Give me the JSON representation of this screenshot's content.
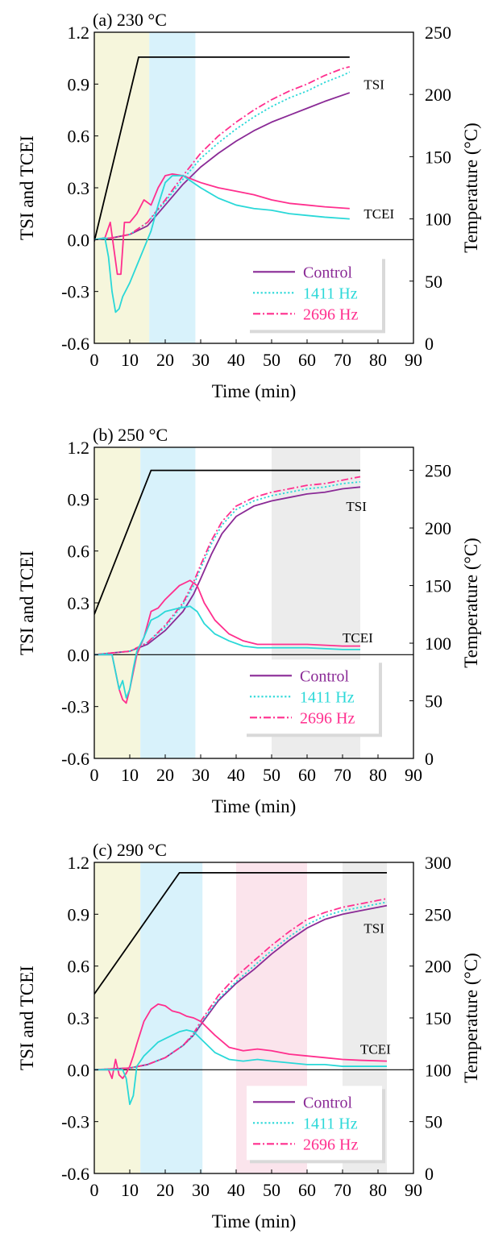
{
  "chart_data": [
    {
      "type": "line",
      "panel_label": "(a) 230 °C",
      "xlabel": "Time (min)",
      "ylabel": "TSI and TCEI",
      "y2label": "Temperature (°C)",
      "xlim": [
        0,
        90
      ],
      "ylim": [
        -0.6,
        1.2
      ],
      "y2lim": [
        0,
        250
      ],
      "xticks": [
        "0",
        "10",
        "20",
        "30",
        "40",
        "50",
        "60",
        "70",
        "80",
        "90"
      ],
      "yticks": [
        "-0.6",
        "-0.3",
        "0.0",
        "0.3",
        "0.6",
        "0.9",
        "1.2"
      ],
      "y2ticks": [
        "0",
        "50",
        "100",
        "150",
        "200",
        "250"
      ],
      "grid": false,
      "legend_position": "bottom-right",
      "shaded_regions": [
        {
          "x": [
            0,
            15.5
          ],
          "color": "#f6f6dc"
        },
        {
          "x": [
            15.5,
            28.5
          ],
          "color": "#d8f2fb"
        }
      ],
      "annotations": [
        {
          "text": "TSI",
          "x": 76,
          "y": 0.9
        },
        {
          "text": "TCEI",
          "x": 76,
          "y": 0.15
        }
      ],
      "temperature": {
        "x": [
          0,
          12.5,
          72
        ],
        "y": [
          82,
          230,
          230
        ]
      },
      "series": [
        {
          "name": "Control",
          "group": "TSI",
          "color": "#8a2a96",
          "style": "solid",
          "x": [
            0,
            5,
            10,
            15,
            20,
            25,
            30,
            35,
            40,
            45,
            50,
            55,
            60,
            65,
            72
          ],
          "y": [
            0,
            0.01,
            0.03,
            0.08,
            0.2,
            0.32,
            0.42,
            0.5,
            0.57,
            0.63,
            0.68,
            0.72,
            0.76,
            0.8,
            0.85
          ]
        },
        {
          "name": "1411 Hz",
          "group": "TSI",
          "color": "#2ad8d8",
          "style": "dotted",
          "x": [
            0,
            5,
            10,
            15,
            20,
            25,
            30,
            35,
            40,
            45,
            50,
            55,
            60,
            65,
            70,
            72
          ],
          "y": [
            0,
            0.01,
            0.03,
            0.1,
            0.22,
            0.35,
            0.47,
            0.56,
            0.64,
            0.71,
            0.77,
            0.82,
            0.86,
            0.91,
            0.95,
            0.97
          ]
        },
        {
          "name": "2696 Hz",
          "group": "TSI",
          "color": "#ff2f8e",
          "style": "dashdot",
          "x": [
            0,
            5,
            10,
            15,
            20,
            25,
            30,
            35,
            40,
            45,
            50,
            55,
            60,
            65,
            70,
            72
          ],
          "y": [
            0,
            0.01,
            0.03,
            0.1,
            0.23,
            0.37,
            0.5,
            0.6,
            0.68,
            0.75,
            0.81,
            0.86,
            0.9,
            0.95,
            0.99,
            1.0
          ]
        },
        {
          "name": "Control",
          "group": "TCEI",
          "color": "#ff2f8e",
          "style": "solid",
          "x": [
            0,
            3,
            4.5,
            5.5,
            6.5,
            7.5,
            8.5,
            10,
            12,
            14,
            16,
            18,
            20,
            22,
            25,
            30,
            35,
            40,
            45,
            50,
            55,
            60,
            65,
            72
          ],
          "y": [
            0,
            0.01,
            0.1,
            -0.05,
            -0.2,
            -0.2,
            0.1,
            0.1,
            0.15,
            0.23,
            0.2,
            0.3,
            0.37,
            0.38,
            0.37,
            0.33,
            0.3,
            0.28,
            0.26,
            0.23,
            0.21,
            0.2,
            0.19,
            0.18
          ]
        },
        {
          "name": "1411 Hz",
          "group": "TCEI",
          "color": "#2ad8d8",
          "style": "solid",
          "x": [
            0,
            3,
            4,
            5,
            6,
            7,
            8,
            10,
            12,
            14,
            16,
            18,
            20,
            22,
            25,
            30,
            35,
            40,
            45,
            50,
            55,
            60,
            65,
            72
          ],
          "y": [
            0,
            0.01,
            -0.1,
            -0.3,
            -0.42,
            -0.4,
            -0.33,
            -0.25,
            -0.15,
            -0.05,
            0.05,
            0.2,
            0.33,
            0.37,
            0.37,
            0.3,
            0.24,
            0.2,
            0.18,
            0.17,
            0.15,
            0.14,
            0.13,
            0.12
          ]
        }
      ],
      "legend": [
        {
          "label": "Control",
          "color": "#8a2a96",
          "style": "solid"
        },
        {
          "label": "1411 Hz",
          "color": "#2ad8d8",
          "style": "dotted"
        },
        {
          "label": "2696 Hz",
          "color": "#ff2f8e",
          "style": "dashdot"
        }
      ]
    },
    {
      "type": "line",
      "panel_label": "(b) 250 °C",
      "xlabel": "Time (min)",
      "ylabel": "TSI and TCEI",
      "y2label": "Temperature (°C)",
      "xlim": [
        0,
        90
      ],
      "ylim": [
        -0.6,
        1.2
      ],
      "y2lim": [
        0,
        270
      ],
      "xticks": [
        "0",
        "10",
        "20",
        "30",
        "40",
        "50",
        "60",
        "70",
        "80",
        "90"
      ],
      "yticks": [
        "-0.6",
        "-0.3",
        "0.0",
        "0.3",
        "0.6",
        "0.9",
        "1.2"
      ],
      "y2ticks": [
        "0",
        "50",
        "100",
        "150",
        "200",
        "250"
      ],
      "grid": false,
      "legend_position": "bottom-right",
      "shaded_regions": [
        {
          "x": [
            0,
            13
          ],
          "color": "#f6f6dc"
        },
        {
          "x": [
            13,
            28.5
          ],
          "color": "#d8f2fb"
        },
        {
          "x": [
            50,
            75
          ],
          "color": "#ececec"
        }
      ],
      "annotations": [
        {
          "text": "TSI",
          "x": 71,
          "y": 0.86
        },
        {
          "text": "TCEI",
          "x": 70,
          "y": 0.1
        }
      ],
      "temperature": {
        "x": [
          0,
          16,
          75
        ],
        "y": [
          125,
          250,
          250
        ]
      },
      "series": [
        {
          "name": "Control",
          "group": "TSI",
          "color": "#8a2a96",
          "style": "solid",
          "x": [
            0,
            5,
            10,
            15,
            20,
            25,
            28,
            30,
            33,
            36,
            40,
            45,
            50,
            55,
            60,
            65,
            70,
            75
          ],
          "y": [
            0,
            0.01,
            0.02,
            0.06,
            0.14,
            0.25,
            0.35,
            0.44,
            0.58,
            0.7,
            0.8,
            0.86,
            0.89,
            0.91,
            0.93,
            0.94,
            0.96,
            0.97
          ]
        },
        {
          "name": "1411 Hz",
          "group": "TSI",
          "color": "#2ad8d8",
          "style": "dotted",
          "x": [
            0,
            5,
            10,
            15,
            20,
            25,
            28,
            30,
            33,
            36,
            40,
            45,
            50,
            55,
            60,
            65,
            70,
            75
          ],
          "y": [
            0,
            0.01,
            0.02,
            0.07,
            0.16,
            0.29,
            0.4,
            0.5,
            0.64,
            0.75,
            0.84,
            0.89,
            0.92,
            0.94,
            0.96,
            0.97,
            0.99,
            1.0
          ]
        },
        {
          "name": "2696 Hz",
          "group": "TSI",
          "color": "#ff2f8e",
          "style": "dashdot",
          "x": [
            0,
            5,
            10,
            15,
            20,
            25,
            28,
            30,
            33,
            36,
            40,
            45,
            50,
            55,
            60,
            65,
            70,
            75
          ],
          "y": [
            0,
            0.01,
            0.02,
            0.07,
            0.17,
            0.3,
            0.42,
            0.52,
            0.66,
            0.77,
            0.86,
            0.91,
            0.94,
            0.96,
            0.98,
            0.99,
            1.01,
            1.03
          ]
        },
        {
          "name": "Control",
          "group": "TCEI",
          "color": "#ff2f8e",
          "style": "solid",
          "x": [
            0,
            5,
            7,
            8,
            9,
            10,
            11,
            12,
            14,
            16,
            18,
            20,
            24,
            27,
            29,
            31,
            34,
            38,
            42,
            46,
            50,
            60,
            70,
            75
          ],
          "y": [
            0,
            0,
            -0.2,
            -0.26,
            -0.28,
            -0.2,
            -0.1,
            0.0,
            0.1,
            0.25,
            0.27,
            0.32,
            0.4,
            0.43,
            0.4,
            0.3,
            0.2,
            0.12,
            0.08,
            0.06,
            0.06,
            0.06,
            0.05,
            0.05
          ]
        },
        {
          "name": "1411 Hz",
          "group": "TCEI",
          "color": "#2ad8d8",
          "style": "solid",
          "x": [
            0,
            5,
            7,
            8,
            9,
            10,
            11,
            12,
            14,
            16,
            18,
            20,
            24,
            27,
            29,
            31,
            34,
            38,
            42,
            46,
            50,
            60,
            70,
            75
          ],
          "y": [
            0,
            0,
            -0.2,
            -0.15,
            -0.25,
            -0.2,
            -0.08,
            0.02,
            0.1,
            0.2,
            0.22,
            0.25,
            0.27,
            0.28,
            0.25,
            0.18,
            0.12,
            0.08,
            0.05,
            0.04,
            0.04,
            0.04,
            0.03,
            0.03
          ]
        }
      ],
      "legend": [
        {
          "label": "Control",
          "color": "#8a2a96",
          "style": "solid"
        },
        {
          "label": "1411 Hz",
          "color": "#2ad8d8",
          "style": "dotted"
        },
        {
          "label": "2696 Hz",
          "color": "#ff2f8e",
          "style": "dashdot"
        }
      ]
    },
    {
      "type": "line",
      "panel_label": "(c) 290 °C",
      "xlabel": "Time (min)",
      "ylabel": "TSI and TCEI",
      "y2label": "Temperature (°C)",
      "xlim": [
        0,
        90
      ],
      "ylim": [
        -0.6,
        1.2
      ],
      "y2lim": [
        0,
        300
      ],
      "xticks": [
        "0",
        "10",
        "20",
        "30",
        "40",
        "50",
        "60",
        "70",
        "80",
        "90"
      ],
      "yticks": [
        "-0.6",
        "-0.3",
        "0.0",
        "0.3",
        "0.6",
        "0.9",
        "1.2"
      ],
      "y2ticks": [
        "0",
        "50",
        "100",
        "150",
        "200",
        "250",
        "300"
      ],
      "grid": false,
      "legend_position": "bottom-right",
      "shaded_regions": [
        {
          "x": [
            0,
            13
          ],
          "color": "#f6f6dc"
        },
        {
          "x": [
            13,
            30.5
          ],
          "color": "#d8f2fb"
        },
        {
          "x": [
            40,
            60
          ],
          "color": "#fbe4ec"
        },
        {
          "x": [
            70,
            82.5
          ],
          "color": "#ececec"
        }
      ],
      "annotations": [
        {
          "text": "TSI",
          "x": 76,
          "y": 0.82
        },
        {
          "text": "TCEI",
          "x": 75,
          "y": 0.12
        }
      ],
      "temperature": {
        "x": [
          0,
          24,
          82.5
        ],
        "y": [
          173,
          290,
          290
        ]
      },
      "series": [
        {
          "name": "Control",
          "group": "TSI",
          "color": "#8a2a96",
          "style": "solid",
          "x": [
            0,
            10,
            15,
            20,
            25,
            28,
            30,
            35,
            40,
            45,
            50,
            55,
            60,
            65,
            70,
            75,
            80,
            82.5
          ],
          "y": [
            0,
            0.01,
            0.03,
            0.07,
            0.14,
            0.2,
            0.26,
            0.4,
            0.5,
            0.58,
            0.67,
            0.75,
            0.82,
            0.87,
            0.9,
            0.92,
            0.94,
            0.95
          ]
        },
        {
          "name": "1411 Hz",
          "group": "TSI",
          "color": "#2ad8d8",
          "style": "dotted",
          "x": [
            0,
            10,
            15,
            20,
            25,
            28,
            30,
            35,
            40,
            45,
            50,
            55,
            60,
            65,
            70,
            75,
            80,
            82.5
          ],
          "y": [
            0,
            0.01,
            0.03,
            0.07,
            0.14,
            0.2,
            0.27,
            0.41,
            0.51,
            0.6,
            0.69,
            0.77,
            0.84,
            0.89,
            0.92,
            0.94,
            0.96,
            0.97
          ]
        },
        {
          "name": "2696 Hz",
          "group": "TSI",
          "color": "#ff2f8e",
          "style": "dashdot",
          "x": [
            0,
            10,
            15,
            20,
            25,
            28,
            30,
            35,
            40,
            45,
            50,
            55,
            60,
            65,
            70,
            75,
            80,
            82.5
          ],
          "y": [
            0,
            0.01,
            0.03,
            0.07,
            0.14,
            0.21,
            0.28,
            0.43,
            0.54,
            0.63,
            0.72,
            0.8,
            0.87,
            0.91,
            0.94,
            0.96,
            0.98,
            0.99
          ]
        },
        {
          "name": "Control",
          "group": "TCEI",
          "color": "#ff2f8e",
          "style": "solid",
          "x": [
            0,
            4,
            5,
            6,
            7,
            8,
            9,
            10,
            11,
            12,
            14,
            16,
            18,
            20,
            22,
            24,
            26,
            28,
            30,
            34,
            38,
            42,
            46,
            50,
            55,
            60,
            65,
            70,
            75,
            82.5
          ],
          "y": [
            0,
            0,
            -0.05,
            0.06,
            -0.03,
            -0.05,
            -0.02,
            0.02,
            0.08,
            0.15,
            0.28,
            0.35,
            0.38,
            0.37,
            0.34,
            0.33,
            0.31,
            0.3,
            0.28,
            0.2,
            0.13,
            0.11,
            0.12,
            0.11,
            0.09,
            0.08,
            0.07,
            0.06,
            0.055,
            0.05
          ]
        },
        {
          "name": "1411 Hz",
          "group": "TCEI",
          "color": "#2ad8d8",
          "style": "solid",
          "x": [
            0,
            8,
            9,
            10,
            11,
            12,
            14,
            16,
            18,
            20,
            22,
            24,
            26,
            28,
            30,
            34,
            38,
            42,
            46,
            50,
            55,
            60,
            65,
            70,
            75,
            82.5
          ],
          "y": [
            0,
            0,
            -0.05,
            -0.2,
            -0.15,
            0.02,
            0.08,
            0.12,
            0.16,
            0.18,
            0.2,
            0.22,
            0.23,
            0.22,
            0.18,
            0.1,
            0.06,
            0.05,
            0.06,
            0.05,
            0.04,
            0.03,
            0.03,
            0.02,
            0.02,
            0.02
          ]
        }
      ],
      "legend": [
        {
          "label": "Control",
          "color": "#8a2a96",
          "style": "solid"
        },
        {
          "label": "1411 Hz",
          "color": "#2ad8d8",
          "style": "dotted"
        },
        {
          "label": "2696 Hz",
          "color": "#ff2f8e",
          "style": "dashdot"
        }
      ]
    }
  ]
}
